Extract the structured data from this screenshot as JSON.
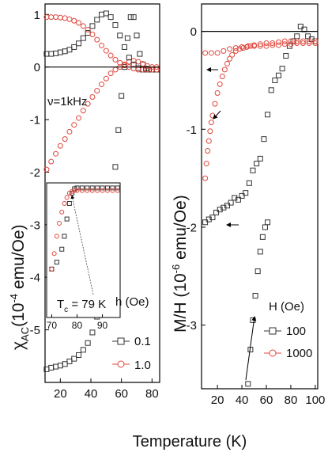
{
  "colors": {
    "black_series": "#333333",
    "red_series": "#e0463c",
    "axis": "#000000"
  },
  "figure": {
    "xlabel": "Temperature (K)"
  },
  "chart_data": [
    {
      "type": "scatter",
      "panel": "left",
      "ylabel_main": "χ",
      "ylabel_sub": "AC",
      "ylabel_rest": "(10",
      "ylabel_exp": "-4",
      "ylabel_unit": " emu/Oe)",
      "annotation": "ν=1kHz",
      "xlim": [
        10,
        85
      ],
      "ylim": [
        -6.0,
        1.2
      ],
      "xticks": [
        20,
        40,
        60,
        80
      ],
      "xtick_labels": [
        "20",
        "40",
        "60",
        "80"
      ],
      "yticks": [
        1,
        0,
        -1,
        -2,
        -3,
        -4,
        -5
      ],
      "ytick_labels": [
        "1",
        "0",
        "-1",
        "-2",
        "-3",
        "-4",
        "-5"
      ],
      "legend_title": "h (Oe)",
      "series": [
        {
          "name": "0.1",
          "color": "#333333",
          "x": [
            11,
            14,
            17,
            20,
            23,
            26,
            29,
            32,
            35,
            38,
            41,
            44,
            47,
            50,
            52,
            54,
            56,
            58,
            60,
            62,
            64,
            66,
            68,
            70,
            72,
            74,
            76,
            78,
            80,
            83
          ],
          "y": [
            -5.75,
            -5.72,
            -5.7,
            -5.68,
            -5.65,
            -5.6,
            -5.55,
            -5.48,
            -5.38,
            -5.25,
            -5.05,
            -4.75,
            -4.3,
            -3.7,
            -3.2,
            -2.55,
            -1.9,
            -1.2,
            -0.55,
            0.0,
            0.55,
            0.95,
            0.95,
            0.6,
            0.25,
            0.05,
            -0.03,
            -0.05,
            -0.05,
            -0.05
          ]
        },
        {
          "name": "1.0",
          "color": "#e0463c",
          "x": [
            11,
            14,
            17,
            20,
            23,
            26,
            29,
            32,
            35,
            38,
            41,
            44,
            47,
            50,
            53,
            56,
            59,
            62,
            65,
            68,
            71,
            74,
            77,
            80,
            83
          ],
          "y": [
            -1.95,
            -1.8,
            -1.65,
            -1.5,
            -1.37,
            -1.23,
            -1.1,
            -0.97,
            -0.83,
            -0.7,
            -0.57,
            -0.45,
            -0.33,
            -0.22,
            -0.12,
            -0.05,
            0.0,
            0.05,
            0.1,
            0.12,
            0.1,
            0.06,
            0.02,
            0.0,
            0.0
          ]
        },
        {
          "name": "",
          "color": "#333333",
          "x": [
            11,
            14,
            17,
            20,
            23,
            26,
            29,
            32,
            35,
            38,
            41,
            44,
            47,
            50,
            53,
            56,
            59,
            62,
            65,
            68,
            71,
            74,
            77,
            80,
            83
          ],
          "y": [
            0.25,
            0.25,
            0.26,
            0.28,
            0.3,
            0.33,
            0.38,
            0.45,
            0.55,
            0.65,
            0.78,
            0.9,
            1.0,
            1.02,
            0.95,
            0.8,
            0.6,
            0.38,
            0.18,
            0.05,
            -0.02,
            -0.05,
            -0.05,
            -0.05,
            -0.05
          ]
        },
        {
          "name": "",
          "color": "#e0463c",
          "x": [
            11,
            14,
            17,
            20,
            23,
            26,
            29,
            32,
            35,
            38,
            41,
            44,
            47,
            50,
            53,
            56,
            59,
            62,
            65,
            68,
            71,
            74,
            77,
            80,
            83
          ],
          "y": [
            0.95,
            0.95,
            0.95,
            0.94,
            0.93,
            0.91,
            0.88,
            0.84,
            0.78,
            0.71,
            0.62,
            0.52,
            0.41,
            0.31,
            0.22,
            0.14,
            0.08,
            0.03,
            0.0,
            -0.03,
            -0.05,
            -0.05,
            -0.05,
            -0.05,
            -0.05
          ]
        }
      ],
      "inset": {
        "xlim": [
          68,
          97
        ],
        "ylim": [
          0,
          1
        ],
        "xticks": [
          70,
          80,
          90
        ],
        "xtick_labels": [
          "70",
          "80",
          "90"
        ],
        "annotation_main": "T",
        "annotation_sub": "c",
        "annotation_rest": " = 79 K",
        "series": [
          {
            "color": "#333333",
            "x": [
              70,
              72,
              74,
              75,
              76,
              77,
              78,
              79,
              80,
              82,
              84,
              86,
              88,
              90,
              92,
              94,
              96
            ],
            "y": [
              0.02,
              0.1,
              0.25,
              0.4,
              0.6,
              0.78,
              0.9,
              0.95,
              0.96,
              0.96,
              0.96,
              0.96,
              0.96,
              0.96,
              0.96,
              0.96,
              0.96
            ]
          },
          {
            "color": "#e0463c",
            "x": [
              70,
              71,
              72,
              73,
              74,
              75,
              76,
              77,
              78,
              79,
              80,
              82,
              84,
              86,
              88,
              90,
              92,
              94,
              96
            ],
            "y": [
              0.02,
              0.2,
              0.4,
              0.55,
              0.68,
              0.78,
              0.85,
              0.9,
              0.92,
              0.93,
              0.93,
              0.93,
              0.93,
              0.93,
              0.93,
              0.93,
              0.93,
              0.93,
              0.93
            ]
          }
        ]
      }
    },
    {
      "type": "scatter",
      "panel": "right",
      "ylabel_main": "M/H",
      "ylabel_rest": " (10",
      "ylabel_exp": "-6",
      "ylabel_unit": " emu/Oe)",
      "xlim": [
        7,
        102
      ],
      "ylim": [
        -3.65,
        0.28
      ],
      "xticks": [
        20,
        40,
        60,
        80,
        100
      ],
      "xtick_labels": [
        "20",
        "40",
        "60",
        "80",
        "100"
      ],
      "yticks": [
        0,
        -1,
        -2,
        -3
      ],
      "ytick_labels": [
        "0",
        "-1",
        "-2",
        "-3"
      ],
      "legend_title": "H (Oe)",
      "series": [
        {
          "name": "100",
          "color": "#333333",
          "x": [
            10,
            13,
            16,
            19,
            22,
            25,
            28,
            31,
            34,
            37,
            40,
            43,
            46,
            49,
            52,
            55,
            58,
            61,
            64,
            67,
            70,
            73,
            76,
            79,
            82,
            85,
            88,
            91,
            94,
            97,
            100
          ],
          "y": [
            -1.95,
            -1.92,
            -1.9,
            -1.85,
            -1.82,
            -1.8,
            -1.78,
            -1.75,
            -1.7,
            -1.72,
            -1.68,
            -1.65,
            -1.55,
            -1.42,
            -1.35,
            -1.3,
            -1.1,
            -0.85,
            -0.6,
            -0.5,
            -0.45,
            -0.38,
            -0.25,
            -0.15,
            -0.1,
            -0.05,
            0.05,
            0.02,
            -0.05,
            -0.08,
            -0.1
          ]
        },
        {
          "name": "1000",
          "color": "#e0463c",
          "x": [
            10,
            11,
            12,
            13,
            14,
            15,
            16,
            18,
            20,
            22,
            24,
            26,
            28,
            30,
            32,
            35,
            38,
            41,
            44,
            47,
            50,
            55,
            60,
            65,
            70,
            75,
            80,
            85,
            90,
            95,
            100
          ],
          "y": [
            -1.5,
            -1.35,
            -1.22,
            -1.12,
            -1.02,
            -0.93,
            -0.86,
            -0.74,
            -0.63,
            -0.54,
            -0.46,
            -0.39,
            -0.33,
            -0.28,
            -0.24,
            -0.2,
            -0.18,
            -0.17,
            -0.16,
            -0.15,
            -0.15,
            -0.15,
            -0.15,
            -0.14,
            -0.14,
            -0.13,
            -0.13,
            -0.12,
            -0.12,
            -0.12,
            -0.12
          ]
        },
        {
          "name": "",
          "color": "#333333",
          "x": [
            45,
            47,
            49,
            51,
            53,
            55,
            57,
            59,
            61
          ],
          "y": [
            -3.6,
            -3.25,
            -2.95,
            -2.7,
            -2.45,
            -2.25,
            -2.1,
            -2.0,
            -1.95
          ]
        },
        {
          "name": "",
          "color": "#e0463c",
          "x": [
            10,
            15,
            20,
            25,
            30,
            35,
            40,
            45,
            50,
            55,
            60,
            65,
            70,
            75,
            80,
            85,
            90,
            95,
            100
          ],
          "y": [
            -0.22,
            -0.22,
            -0.22,
            -0.2,
            -0.18,
            -0.17,
            -0.16,
            -0.15,
            -0.14,
            -0.13,
            -0.12,
            -0.12,
            -0.11,
            -0.1,
            -0.1,
            -0.1,
            -0.1,
            -0.1,
            -0.1
          ]
        }
      ]
    }
  ]
}
